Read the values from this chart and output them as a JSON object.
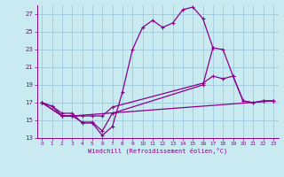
{
  "background_color": "#c8eaf0",
  "grid_color": "#a0c8d8",
  "line_color": "#8b008b",
  "xlabel": "Windchill (Refroidissement éolien,°C)",
  "xlim": [
    -0.5,
    23.5
  ],
  "ylim": [
    13,
    28
  ],
  "yticks": [
    13,
    15,
    17,
    19,
    21,
    23,
    25,
    27
  ],
  "xticks": [
    0,
    1,
    2,
    3,
    4,
    5,
    6,
    7,
    8,
    9,
    10,
    11,
    12,
    13,
    14,
    15,
    16,
    17,
    18,
    19,
    20,
    21,
    22,
    23
  ],
  "series1_x": [
    0,
    1,
    2,
    3,
    4,
    5,
    6,
    7,
    8,
    9,
    10,
    11,
    12,
    13,
    14,
    15,
    16,
    17
  ],
  "series1_y": [
    17.0,
    16.6,
    15.8,
    15.8,
    14.7,
    14.7,
    13.3,
    14.3,
    18.2,
    23.0,
    25.5,
    26.3,
    25.5,
    26.0,
    27.5,
    27.8,
    26.5,
    23.2
  ],
  "series2_x": [
    0,
    1,
    2,
    3,
    4,
    5,
    6,
    7,
    16,
    17,
    18,
    19,
    20,
    21,
    22,
    23
  ],
  "series2_y": [
    17.0,
    16.6,
    15.5,
    15.5,
    15.5,
    15.5,
    15.5,
    16.5,
    19.2,
    20.0,
    19.7,
    20.0,
    17.2,
    17.0,
    17.2,
    17.2
  ],
  "series3_x": [
    0,
    2,
    3,
    4,
    5,
    6,
    7,
    16,
    17,
    18,
    19,
    20,
    21,
    22,
    23
  ],
  "series3_y": [
    17.0,
    15.5,
    15.5,
    14.8,
    14.8,
    13.8,
    15.8,
    19.0,
    23.2,
    23.0,
    20.0,
    17.2,
    17.0,
    17.2,
    17.2
  ],
  "series4_x": [
    0,
    2,
    3,
    23
  ],
  "series4_y": [
    17.0,
    15.5,
    15.5,
    17.2
  ]
}
